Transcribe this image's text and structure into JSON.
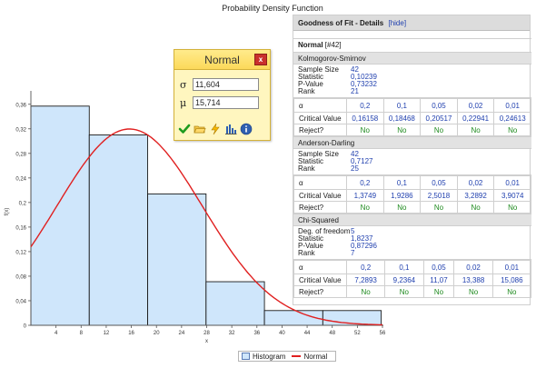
{
  "chart": {
    "title": "Probability Density Function",
    "xlabel": "x",
    "ylabel": "f(x)",
    "legend": [
      "Histogram",
      "Normal"
    ]
  },
  "chart_data": {
    "type": "bar",
    "title": "Probability Density Function",
    "xlabel": "x",
    "ylabel": "f(x)",
    "xlim": [
      0,
      56
    ],
    "ylim": [
      0,
      0.37
    ],
    "x_ticks": [
      4,
      8,
      12,
      16,
      20,
      24,
      28,
      32,
      36,
      40,
      44,
      48,
      52,
      56
    ],
    "y_ticks": [
      0,
      0.04,
      0.08,
      0.12,
      0.16,
      0.2,
      0.24,
      0.28,
      0.32,
      0.36
    ],
    "y_tick_labels": [
      "0",
      "0,04",
      "0,08",
      "0,12",
      "0,16",
      "0,2",
      "0,24",
      "0,28",
      "0,32",
      "0,36"
    ],
    "bins": [
      {
        "from": 0,
        "to": 9.3,
        "value": 0.357
      },
      {
        "from": 9.3,
        "to": 18.6,
        "value": 0.31
      },
      {
        "from": 18.6,
        "to": 27.9,
        "value": 0.214
      },
      {
        "from": 27.9,
        "to": 37.2,
        "value": 0.071
      },
      {
        "from": 37.2,
        "to": 46.5,
        "value": 0.024
      },
      {
        "from": 46.5,
        "to": 55.8,
        "value": 0.024
      }
    ],
    "series": [
      {
        "name": "Histogram",
        "type": "bar"
      },
      {
        "name": "Normal",
        "type": "line",
        "distribution": "normal",
        "sigma": 11.604,
        "mu": 15.714,
        "scale": 9.3
      }
    ],
    "legend_position": "bottom",
    "colors": {
      "bar_fill": "#cfe6fb",
      "bar_stroke": "#1a1a1a",
      "line": "#e02020"
    }
  },
  "dialog": {
    "title": "Normal",
    "close": "x",
    "sigma_symbol": "σ",
    "sigma_value": "11,604",
    "mu_symbol": "μ",
    "mu_value": "15,714",
    "tools": [
      "check-icon",
      "folder-icon",
      "lightning-icon",
      "histogram-icon",
      "info-icon"
    ]
  },
  "gof": {
    "header": "Goodness of Fit - Details",
    "hide_link": "[hide]",
    "dist_name": "Normal",
    "dist_id": "[#42]",
    "ks": {
      "title": "Kolmogorov-Smirnov",
      "labels": [
        "Sample Size",
        "Statistic",
        "P-Value",
        "Rank"
      ],
      "values": [
        "42",
        "0,10239",
        "0,73232",
        "21"
      ],
      "alpha_label": "α",
      "alphas": [
        "0,2",
        "0,1",
        "0,05",
        "0,02",
        "0,01"
      ],
      "cv_label": "Critical Value",
      "cvs": [
        "0,16158",
        "0,18468",
        "0,20517",
        "0,22941",
        "0,24613"
      ],
      "reject_label": "Reject?",
      "rejects": [
        "No",
        "No",
        "No",
        "No",
        "No"
      ]
    },
    "ad": {
      "title": "Anderson-Darling",
      "labels": [
        "Sample Size",
        "Statistic",
        "Rank"
      ],
      "values": [
        "42",
        "0,7127",
        "25"
      ],
      "alpha_label": "α",
      "alphas": [
        "0,2",
        "0,1",
        "0,05",
        "0,02",
        "0,01"
      ],
      "cv_label": "Critical Value",
      "cvs": [
        "1,3749",
        "1,9286",
        "2,5018",
        "3,2892",
        "3,9074"
      ],
      "reject_label": "Reject?",
      "rejects": [
        "No",
        "No",
        "No",
        "No",
        "No"
      ]
    },
    "cs": {
      "title": "Chi-Squared",
      "labels": [
        "Deg. of freedom",
        "Statistic",
        "P-Value",
        "Rank"
      ],
      "values": [
        "5",
        "1,8237",
        "0,87296",
        "7"
      ],
      "alpha_label": "α",
      "alphas": [
        "0,2",
        "0,1",
        "0,05",
        "0,02",
        "0,01"
      ],
      "cv_label": "Critical Value",
      "cvs": [
        "7,2893",
        "9,2364",
        "11,07",
        "13,388",
        "15,086"
      ],
      "reject_label": "Reject?",
      "rejects": [
        "No",
        "No",
        "No",
        "No",
        "No"
      ]
    }
  }
}
